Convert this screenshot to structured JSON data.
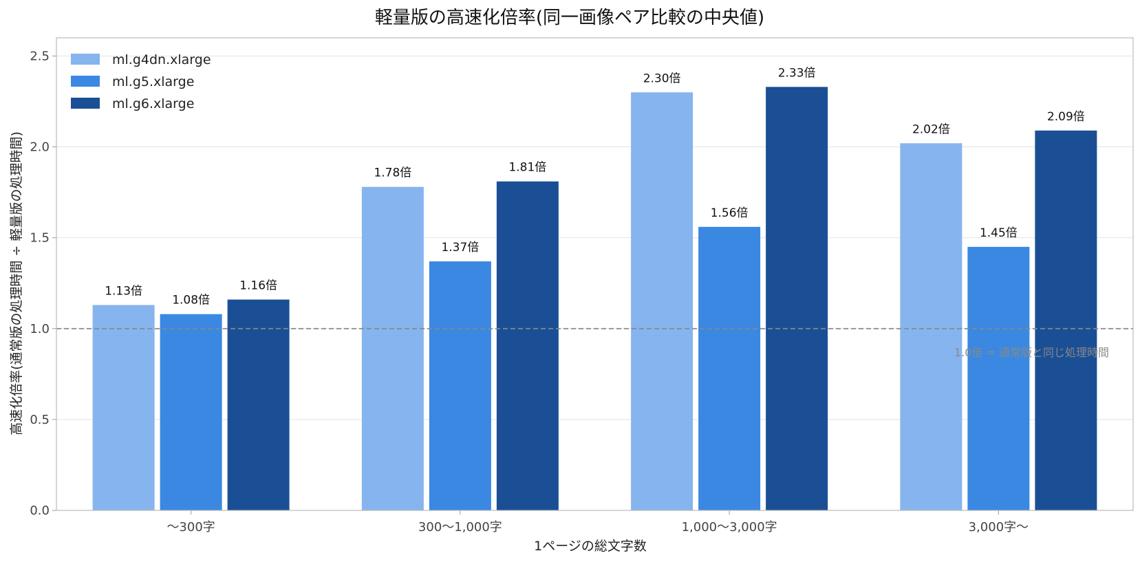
{
  "chart_data": {
    "type": "bar",
    "title": "軽量版の高速化倍率(同一画像ペア比較の中央値)",
    "xlabel": "1ページの総文字数",
    "ylabel": "高速化倍率(通常版の処理時間 ÷ 軽量版の処理時間)",
    "categories": [
      "〜300字",
      "300〜1,000字",
      "1,000〜3,000字",
      "3,000字〜"
    ],
    "series": [
      {
        "name": "ml.g4dn.xlarge",
        "color": "#86b4ee",
        "values": [
          1.13,
          1.78,
          2.3,
          2.02
        ]
      },
      {
        "name": "ml.g5.xlarge",
        "color": "#3a88e2",
        "values": [
          1.08,
          1.37,
          1.56,
          1.45
        ]
      },
      {
        "name": "ml.g6.xlarge",
        "color": "#1a4f95",
        "values": [
          1.16,
          1.81,
          2.33,
          2.09
        ]
      }
    ],
    "value_suffix": "倍",
    "ylim": [
      0,
      2.6
    ],
    "yticks": [
      "0.0",
      "0.5",
      "1.0",
      "1.5",
      "2.0",
      "2.5"
    ],
    "ytick_values": [
      0,
      0.5,
      1.0,
      1.5,
      2.0,
      2.5
    ],
    "reference_line": {
      "value": 1.0,
      "label": "1.0倍 = 通常版と同じ処理時間",
      "color": "#888888"
    },
    "legend_position": "top-left",
    "grid": "horizontal"
  }
}
